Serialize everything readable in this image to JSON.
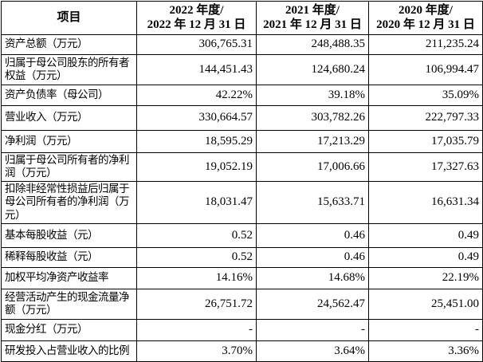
{
  "table": {
    "colors": {
      "border": "#000000",
      "text": "#000000",
      "background": "#ffffff"
    },
    "header": {
      "item": "项目",
      "columns": [
        {
          "line1": "2022 年度/",
          "line2": "2022 年 12 月 31 日"
        },
        {
          "line1": "2021 年度/",
          "line2": "2021 年 12 月 31 日"
        },
        {
          "line1": "2020 年度/",
          "line2": "2020 年 12 月 31 日"
        }
      ]
    },
    "rows": [
      {
        "label": "资产总额（万元）",
        "values": [
          "306,765.31",
          "248,488.35",
          "211,235.24"
        ]
      },
      {
        "label": "归属于母公司股东的所有者权益（万元）",
        "values": [
          "144,451.43",
          "124,680.24",
          "106,994.47"
        ]
      },
      {
        "label": "资产负债率（母公司）",
        "values": [
          "42.22%",
          "39.18%",
          "35.09%"
        ]
      },
      {
        "label": "营业收入（万元）",
        "values": [
          "330,664.57",
          "303,782.26",
          "222,797.33"
        ]
      },
      {
        "label": "净利润（万元）",
        "values": [
          "18,595.29",
          "17,213.29",
          "17,035.79"
        ]
      },
      {
        "label": "归属于母公司所有者的净利润（万元）",
        "values": [
          "19,052.19",
          "17,006.66",
          "17,327.63"
        ]
      },
      {
        "label": "扣除非经常性损益后归属于母公司所有者的净利润（万元）",
        "values": [
          "18,031.47",
          "15,633.71",
          "16,631.34"
        ]
      },
      {
        "label": "基本每股收益（元）",
        "values": [
          "0.52",
          "0.46",
          "0.49"
        ]
      },
      {
        "label": "稀释每股收益（元）",
        "values": [
          "0.52",
          "0.46",
          "0.49"
        ]
      },
      {
        "label": "加权平均净资产收益率",
        "values": [
          "14.16%",
          "14.68%",
          "22.19%"
        ]
      },
      {
        "label": "经营活动产生的现金流量净额（万元）",
        "values": [
          "26,751.72",
          "24,562.47",
          "25,451.00"
        ]
      },
      {
        "label": "现金分红（万元）",
        "values": [
          "-",
          "-",
          "-"
        ]
      },
      {
        "label": "研发投入占营业收入的比例",
        "values": [
          "3.70%",
          "3.64%",
          "3.36%"
        ]
      }
    ]
  }
}
